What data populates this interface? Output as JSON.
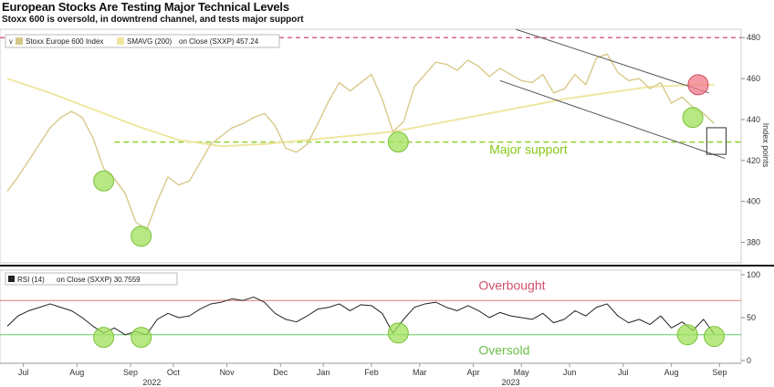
{
  "title": "European Stocks Are Testing Major Technical Levels",
  "subtitle": "Stoxx 600 is oversold, in downtrend channel, and tests major support",
  "colors": {
    "price": "#d8c98a",
    "sma": "#eee6a0",
    "support": "#8fd12a",
    "resistance": "#d24a6a",
    "oversold_line": "#66cc66",
    "overbought_line": "#e07a7a",
    "rsi": "#222222",
    "green_marker": "#9fe05a",
    "red_marker": "#f07a8a"
  },
  "chart_data": [
    {
      "type": "line",
      "legend": [
        {
          "name": "Stoxx Europe 600 Index",
          "prefix": "∨"
        },
        {
          "name": "SMAVG (200)",
          "suffix": "on Close (SXXP) 457.24"
        }
      ],
      "ylabel": "Index points",
      "ylim": [
        370,
        485
      ],
      "yticks": [
        380,
        400,
        420,
        440,
        460,
        480
      ],
      "xlim": [
        0,
        68
      ],
      "annotations": [
        {
          "text": "Major support",
          "x": 45,
          "y": 422
        }
      ],
      "reference_lines": [
        {
          "name": "resistance",
          "value": 480
        },
        {
          "name": "support",
          "value": 429,
          "x_start": 10
        }
      ],
      "channel": {
        "upper": [
          [
            47.5,
            484
          ],
          [
            65.5,
            453
          ]
        ],
        "lower": [
          [
            46,
            459
          ],
          [
            67,
            421
          ]
        ]
      },
      "box": {
        "x": [
          65.3,
          67.1
        ],
        "y": [
          423,
          436
        ]
      },
      "markers": [
        {
          "color": "green",
          "x": 9,
          "y": 410
        },
        {
          "color": "green",
          "x": 12.5,
          "y": 383
        },
        {
          "color": "green",
          "x": 36.5,
          "y": 429
        },
        {
          "color": "green",
          "x": 64,
          "y": 441
        },
        {
          "color": "red",
          "x": 64.5,
          "y": 457
        }
      ],
      "series": [
        {
          "name": "Stoxx Europe 600 Index",
          "x": [
            0,
            1,
            2,
            3,
            4,
            5,
            6,
            7,
            8,
            9,
            10,
            11,
            12,
            13,
            14,
            15,
            16,
            17,
            18,
            19,
            20,
            21,
            22,
            23,
            24,
            25,
            26,
            27,
            28,
            29,
            30,
            31,
            32,
            33,
            34,
            35,
            36,
            37,
            38,
            39,
            40,
            41,
            42,
            43,
            44,
            45,
            46,
            47,
            48,
            49,
            50,
            51,
            52,
            53,
            54,
            55,
            56,
            57,
            58,
            59,
            60,
            61,
            62,
            63,
            64,
            65,
            66
          ],
          "values": [
            405,
            412,
            420,
            428,
            436,
            441,
            444,
            441,
            431,
            416,
            411,
            404,
            390,
            386,
            400,
            412,
            408,
            410,
            419,
            428,
            432,
            436,
            438,
            441,
            443,
            437,
            426,
            424,
            428,
            438,
            449,
            458,
            454,
            458,
            462,
            450,
            434,
            439,
            456,
            462,
            468,
            467,
            464,
            469,
            466,
            461,
            465,
            462,
            459,
            458,
            462,
            453,
            455,
            462,
            457,
            470,
            472,
            463,
            459,
            460,
            455,
            458,
            448,
            451,
            446,
            443,
            438
          ]
        },
        {
          "name": "SMAVG (200)",
          "x": [
            0,
            4,
            8,
            12,
            16,
            20,
            24,
            28,
            32,
            36,
            40,
            44,
            48,
            52,
            56,
            60,
            64,
            66
          ],
          "values": [
            460,
            453,
            445,
            437,
            430,
            427,
            428,
            430,
            432,
            434,
            438,
            442,
            446,
            450,
            453,
            456,
            457,
            457
          ]
        }
      ]
    },
    {
      "type": "line",
      "legend": [
        {
          "name": "RSI (14)",
          "suffix": "on Close (SXXP) 30.7559"
        }
      ],
      "ylim": [
        0,
        100
      ],
      "yticks": [
        0,
        50,
        100
      ],
      "xlim": [
        0,
        68
      ],
      "annotations": [
        {
          "text": "Overbought",
          "x": 44,
          "y": 88
        },
        {
          "text": "Oversold",
          "x": 44,
          "y": 12
        }
      ],
      "reference_lines": [
        {
          "name": "overbought",
          "value": 70
        },
        {
          "name": "oversold",
          "value": 30
        }
      ],
      "markers": [
        {
          "color": "green",
          "x": 9,
          "y": 27
        },
        {
          "color": "green",
          "x": 12.5,
          "y": 27
        },
        {
          "color": "green",
          "x": 36.5,
          "y": 32
        },
        {
          "color": "green",
          "x": 63.5,
          "y": 30
        },
        {
          "color": "green",
          "x": 66,
          "y": 28
        }
      ],
      "series": [
        {
          "name": "RSI (14)",
          "x": [
            0,
            1,
            2,
            3,
            4,
            5,
            6,
            7,
            8,
            9,
            10,
            11,
            12,
            13,
            14,
            15,
            16,
            17,
            18,
            19,
            20,
            21,
            22,
            23,
            24,
            25,
            26,
            27,
            28,
            29,
            30,
            31,
            32,
            33,
            34,
            35,
            36,
            37,
            38,
            39,
            40,
            41,
            42,
            43,
            44,
            45,
            46,
            47,
            48,
            49,
            50,
            51,
            52,
            53,
            54,
            55,
            56,
            57,
            58,
            59,
            60,
            61,
            62,
            63,
            64,
            65,
            66
          ],
          "values": [
            40,
            52,
            58,
            62,
            66,
            62,
            58,
            50,
            40,
            32,
            38,
            30,
            34,
            30,
            48,
            55,
            50,
            52,
            60,
            66,
            68,
            72,
            70,
            74,
            68,
            55,
            48,
            45,
            52,
            60,
            62,
            66,
            58,
            65,
            64,
            55,
            32,
            48,
            62,
            66,
            68,
            62,
            58,
            64,
            58,
            50,
            56,
            52,
            50,
            48,
            55,
            44,
            48,
            58,
            52,
            62,
            66,
            52,
            44,
            48,
            42,
            52,
            38,
            45,
            35,
            48,
            31
          ]
        }
      ],
      "x_tick_labels": [
        "Jul",
        "Aug",
        "Sep",
        "Oct",
        "Nov",
        "Dec",
        "Jan",
        "Feb",
        "Mar",
        "Apr",
        "May",
        "Jun",
        "Jul",
        "Aug",
        "Sep",
        "Oct"
      ],
      "x_tick_positions": [
        1.5,
        6.5,
        11.5,
        15.5,
        20.5,
        25.5,
        29.5,
        34,
        38.5,
        43.5,
        48,
        52.5,
        57.5,
        62,
        66.5,
        70.5
      ],
      "year_labels": [
        {
          "text": "2022",
          "x": 13.5
        },
        {
          "text": "2023",
          "x": 47
        }
      ]
    }
  ]
}
